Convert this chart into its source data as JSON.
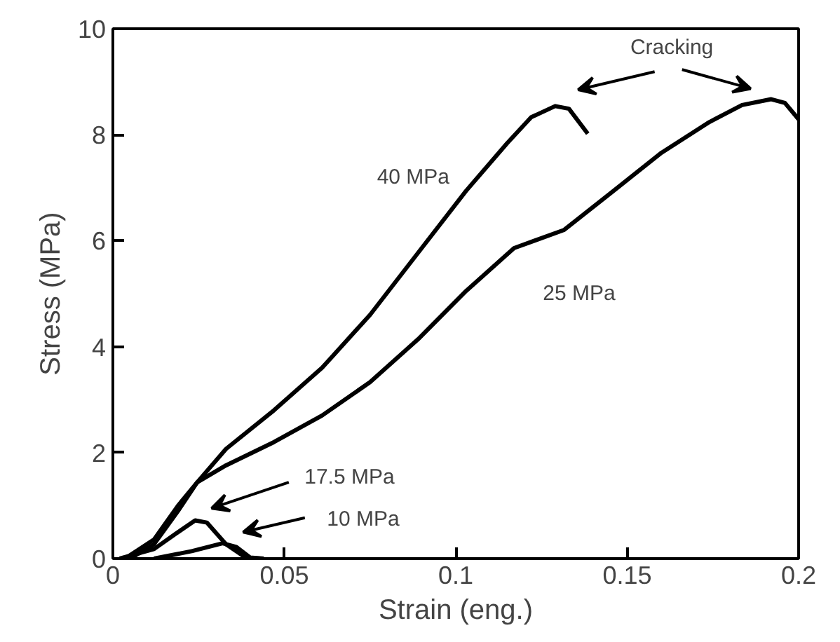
{
  "chart_data": {
    "type": "line",
    "xlabel": "Strain (eng.)",
    "ylabel": "Stress (MPa)",
    "xlim": [
      0,
      0.2
    ],
    "ylim": [
      0,
      10
    ],
    "xticks": [
      0,
      0.05,
      0.1,
      0.15,
      0.2
    ],
    "yticks": [
      0,
      2,
      4,
      6,
      8,
      10
    ],
    "grid": false,
    "marker": "none",
    "line_style": "solid",
    "series": [
      {
        "color": "#000000",
        "x": [
          0.0035,
          0.012,
          0.019,
          0.0246,
          0.033,
          0.047,
          0.061,
          0.075,
          0.089,
          0.103,
          0.115,
          0.122,
          0.129,
          0.133,
          0.1385
        ],
        "values": [
          0,
          0.36,
          1.0,
          1.44,
          2.07,
          2.8,
          3.6,
          4.6,
          5.77,
          6.94,
          7.84,
          8.33,
          8.54,
          8.49,
          8.02
        ]
      },
      {
        "color": "#000000",
        "x": [
          0.005,
          0.012,
          0.019,
          0.0246,
          0.033,
          0.047,
          0.061,
          0.075,
          0.089,
          0.103,
          0.117,
          0.1315,
          0.146,
          0.16,
          0.174,
          0.1835,
          0.192,
          0.196,
          0.2
        ],
        "values": [
          0,
          0.27,
          0.9,
          1.44,
          1.76,
          2.2,
          2.7,
          3.33,
          4.14,
          5.05,
          5.86,
          6.2,
          6.94,
          7.66,
          8.24,
          8.56,
          8.67,
          8.6,
          8.29
        ]
      },
      {
        "color": "#000000",
        "x": [
          0.002,
          0.012,
          0.019,
          0.024,
          0.0274,
          0.033,
          0.0387,
          0.043
        ],
        "values": [
          0,
          0.18,
          0.5,
          0.72,
          0.68,
          0.27,
          0.02,
          0
        ]
      },
      {
        "color": "#000000",
        "x": [
          0.012,
          0.023,
          0.032,
          0.036,
          0.04,
          0.044
        ],
        "values": [
          0,
          0.14,
          0.29,
          0.22,
          0.02,
          0
        ]
      }
    ],
    "annotations": [
      "40 MPa",
      "25 MPa",
      "17.5 MPa",
      "10 MPa",
      "Cracking"
    ]
  }
}
